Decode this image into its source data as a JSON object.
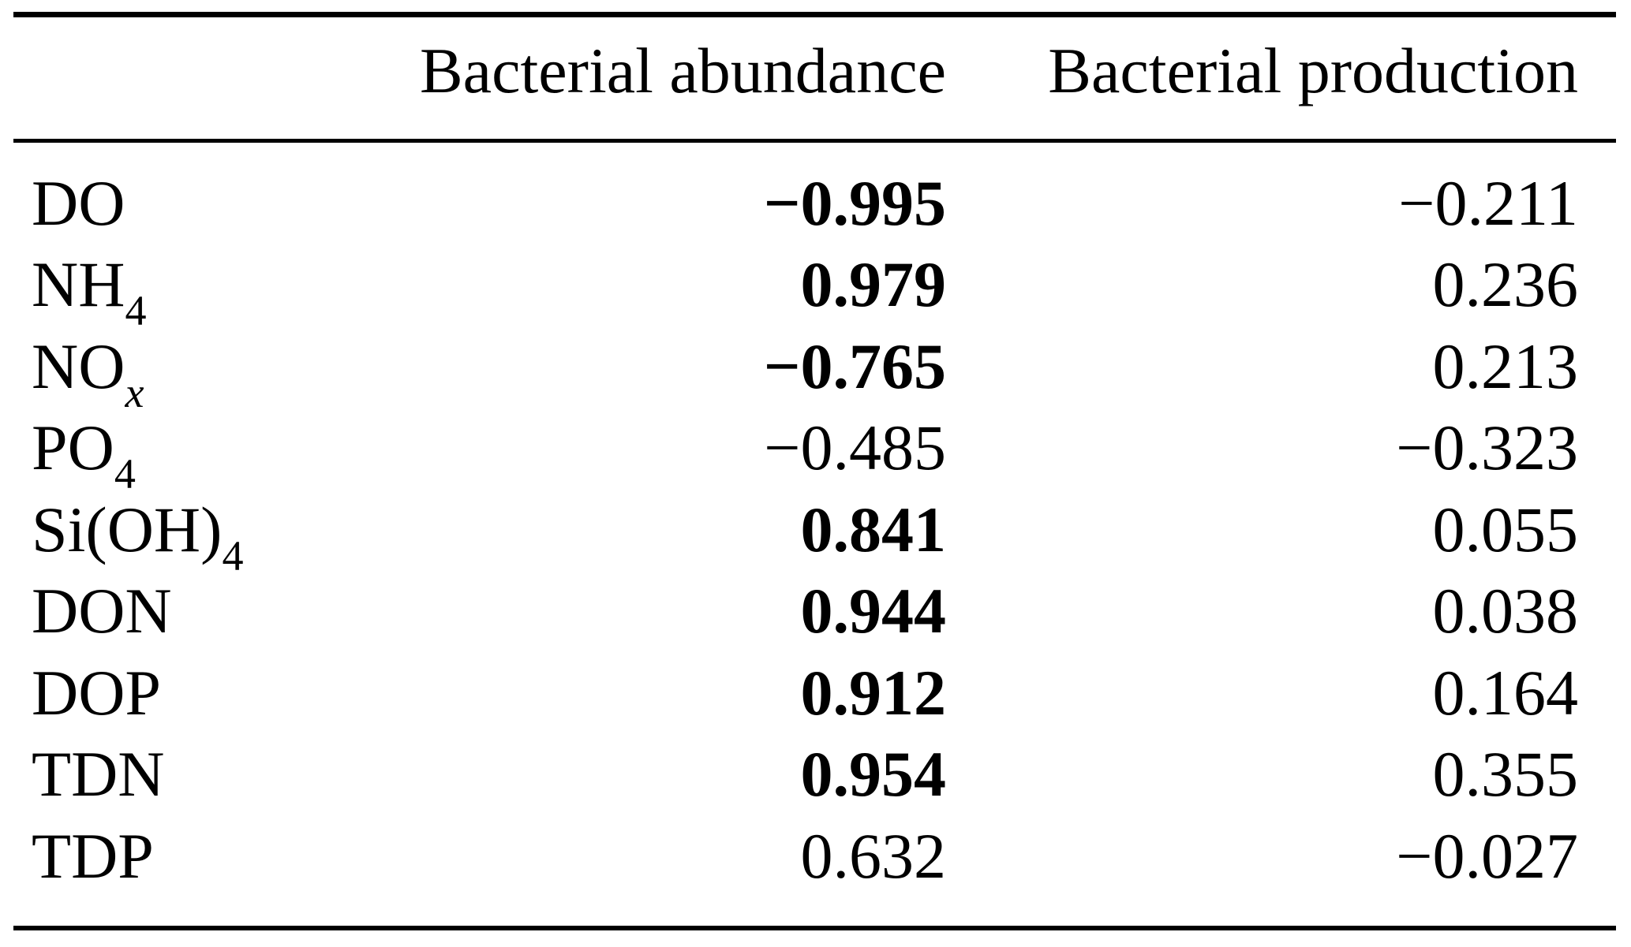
{
  "table": {
    "columns": {
      "label": "",
      "abundance": "Bacterial abundance",
      "production": "Bacterial production"
    },
    "rows": [
      {
        "label_main": "DO",
        "label_sub": "",
        "label_sub_italic": false,
        "abundance": "−0.995",
        "abundance_bold": true,
        "production": "−0.211",
        "production_bold": false
      },
      {
        "label_main": "NH",
        "label_sub": "4",
        "label_sub_italic": false,
        "abundance": "0.979",
        "abundance_bold": true,
        "production": "0.236",
        "production_bold": false
      },
      {
        "label_main": "NO",
        "label_sub": "x",
        "label_sub_italic": true,
        "abundance": "−0.765",
        "abundance_bold": true,
        "production": "0.213",
        "production_bold": false
      },
      {
        "label_main": "PO",
        "label_sub": "4",
        "label_sub_italic": false,
        "abundance": "−0.485",
        "abundance_bold": false,
        "production": "−0.323",
        "production_bold": false
      },
      {
        "label_main": "Si(OH)",
        "label_sub": "4",
        "label_sub_italic": false,
        "abundance": "0.841",
        "abundance_bold": true,
        "production": "0.055",
        "production_bold": false
      },
      {
        "label_main": "DON",
        "label_sub": "",
        "label_sub_italic": false,
        "abundance": "0.944",
        "abundance_bold": true,
        "production": "0.038",
        "production_bold": false
      },
      {
        "label_main": "DOP",
        "label_sub": "",
        "label_sub_italic": false,
        "abundance": "0.912",
        "abundance_bold": true,
        "production": "0.164",
        "production_bold": false
      },
      {
        "label_main": "TDN",
        "label_sub": "",
        "label_sub_italic": false,
        "abundance": "0.954",
        "abundance_bold": true,
        "production": "0.355",
        "production_bold": false
      },
      {
        "label_main": "TDP",
        "label_sub": "",
        "label_sub_italic": false,
        "abundance": "0.632",
        "abundance_bold": false,
        "production": "−0.027",
        "production_bold": false
      }
    ]
  },
  "chart_data": {
    "type": "table",
    "title": "",
    "columns": [
      "",
      "Bacterial abundance",
      "Bacterial production"
    ],
    "rows": [
      [
        "DO",
        -0.995,
        -0.211
      ],
      [
        "NH4",
        0.979,
        0.236
      ],
      [
        "NOx",
        -0.765,
        0.213
      ],
      [
        "PO4",
        -0.485,
        -0.323
      ],
      [
        "Si(OH)4",
        0.841,
        0.055
      ],
      [
        "DON",
        0.944,
        0.038
      ],
      [
        "DOP",
        0.912,
        0.164
      ],
      [
        "TDN",
        0.954,
        0.355
      ],
      [
        "TDP",
        0.632,
        -0.027
      ]
    ],
    "bold_abundance_rows": [
      "DO",
      "NH4",
      "NOx",
      "Si(OH)4",
      "DON",
      "DOP",
      "TDN"
    ]
  }
}
